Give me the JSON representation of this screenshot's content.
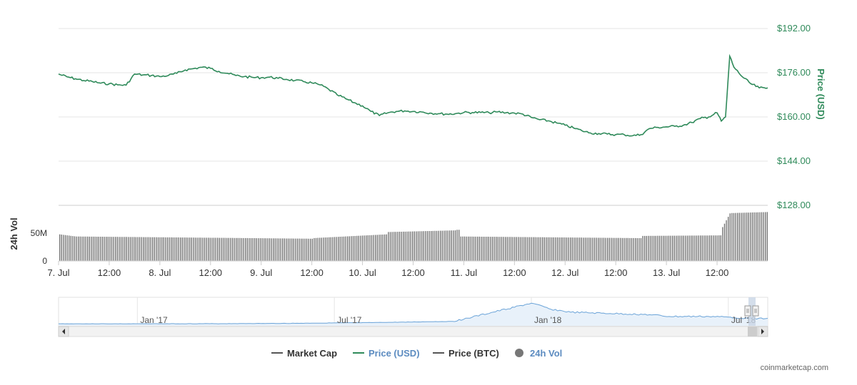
{
  "chart_data": {
    "type": "line",
    "y_axis_price": {
      "title": "Price (USD)",
      "ticks": [
        "$192.00",
        "$176.00",
        "$160.00",
        "$144.00",
        "$128.00"
      ],
      "tick_values": [
        192,
        176,
        160,
        144,
        128
      ],
      "range": [
        128,
        192
      ]
    },
    "y_axis_volume": {
      "title": "24h Vol",
      "ticks": [
        "50M",
        "0"
      ],
      "tick_values": [
        50,
        0
      ],
      "range": [
        0,
        100
      ]
    },
    "x_axis": {
      "ticks": [
        "7. Jul",
        "12:00",
        "8. Jul",
        "12:00",
        "9. Jul",
        "12:00",
        "10. Jul",
        "12:00",
        "11. Jul",
        "12:00",
        "12. Jul",
        "12:00",
        "13. Jul",
        "12:00"
      ],
      "tick_hours": [
        0,
        12,
        24,
        36,
        48,
        60,
        72,
        84,
        96,
        108,
        120,
        132,
        144,
        156
      ],
      "range_hours": [
        0,
        168
      ]
    },
    "price_series": {
      "name": "Price (USD)",
      "color": "#2f8a5a",
      "x_hours": [
        0,
        2,
        4,
        6,
        8,
        10,
        12,
        14,
        16,
        18,
        20,
        22,
        24,
        26,
        28,
        30,
        32,
        34,
        36,
        38,
        40,
        42,
        44,
        46,
        48,
        50,
        52,
        54,
        56,
        58,
        60,
        62,
        64,
        66,
        68,
        70,
        72,
        74,
        76,
        78,
        80,
        82,
        84,
        86,
        88,
        90,
        92,
        94,
        96,
        98,
        100,
        102,
        104,
        106,
        108,
        110,
        112,
        114,
        116,
        118,
        120,
        122,
        124,
        126,
        128,
        130,
        132,
        134,
        136,
        138,
        140,
        142,
        144,
        146,
        148,
        150,
        152,
        154,
        156,
        157,
        158,
        159,
        160,
        162,
        164,
        166,
        168
      ],
      "values": [
        175.5,
        174.5,
        173.8,
        173.2,
        172.8,
        172.2,
        172.0,
        171.6,
        171.5,
        175.5,
        175.2,
        175.0,
        174.6,
        175.0,
        175.8,
        177.0,
        177.5,
        178.0,
        177.6,
        176.5,
        175.8,
        175.0,
        174.6,
        174.3,
        174.2,
        174.4,
        174.0,
        173.6,
        173.2,
        172.8,
        172.3,
        171.6,
        170.0,
        168.0,
        166.6,
        165.2,
        164.0,
        162.0,
        160.5,
        161.5,
        162.0,
        162.2,
        162.0,
        161.8,
        161.4,
        161.2,
        161.0,
        161.2,
        161.6,
        161.6,
        161.6,
        161.5,
        161.8,
        161.5,
        161.4,
        161.0,
        159.8,
        159.0,
        158.6,
        157.8,
        157.0,
        156.0,
        155.0,
        154.2,
        154.0,
        153.8,
        153.6,
        153.6,
        153.2,
        153.6,
        155.8,
        156.2,
        156.4,
        156.6,
        157.0,
        158.0,
        159.4,
        160.0,
        161.5,
        158.5,
        160.0,
        182.0,
        178.0,
        174.5,
        172.0,
        170.5,
        170.5
      ]
    },
    "volume_series": {
      "name": "24h Vol",
      "unit": "M",
      "segments": [
        {
          "from_hour": 0,
          "to_hour": 4,
          "start_value": 48,
          "end_value": 44
        },
        {
          "from_hour": 4,
          "to_hour": 60,
          "start_value": 44,
          "end_value": 40
        },
        {
          "from_hour": 60,
          "to_hour": 78,
          "start_value": 41,
          "end_value": 48
        },
        {
          "from_hour": 78,
          "to_hour": 94,
          "start_value": 52,
          "end_value": 55
        },
        {
          "from_hour": 94,
          "to_hour": 95,
          "start_value": 56,
          "end_value": 56
        },
        {
          "from_hour": 95,
          "to_hour": 138,
          "start_value": 44,
          "end_value": 41
        },
        {
          "from_hour": 138,
          "to_hour": 157,
          "start_value": 45,
          "end_value": 46
        },
        {
          "from_hour": 157,
          "to_hour": 159,
          "start_value": 58,
          "end_value": 86
        },
        {
          "from_hour": 159,
          "to_hour": 168,
          "start_value": 86,
          "end_value": 88
        }
      ],
      "color": "#757575"
    },
    "navigator": {
      "labels": [
        "Jan '17",
        "Jul '17",
        "Jan '18",
        "Jul '18"
      ],
      "label_positions": [
        0.0,
        0.5,
        1.0,
        1.5
      ],
      "x_years": [
        -0.2,
        0.0,
        0.2,
        0.4,
        0.6,
        0.8,
        0.85,
        1.0,
        1.05,
        1.1,
        1.2,
        1.3,
        1.35,
        1.45,
        1.5,
        1.55,
        1.6
      ],
      "values": [
        1,
        1,
        1.2,
        1.8,
        3,
        5,
        12,
        35,
        25,
        20,
        18,
        16,
        13,
        13,
        12,
        10,
        10
      ]
    },
    "legend": {
      "placement": "bottom-center",
      "items": [
        {
          "label": "Market Cap",
          "color": "#555555",
          "marker": "line"
        },
        {
          "label": "Price (USD)",
          "color": "#2f8a5a",
          "marker": "line"
        },
        {
          "label": "Price (BTC)",
          "color": "#555555",
          "marker": "line"
        },
        {
          "label": "24h Vol",
          "color": "#777777",
          "marker": "circle"
        }
      ]
    },
    "grid": true
  },
  "credit": "coinmarketcap.com"
}
